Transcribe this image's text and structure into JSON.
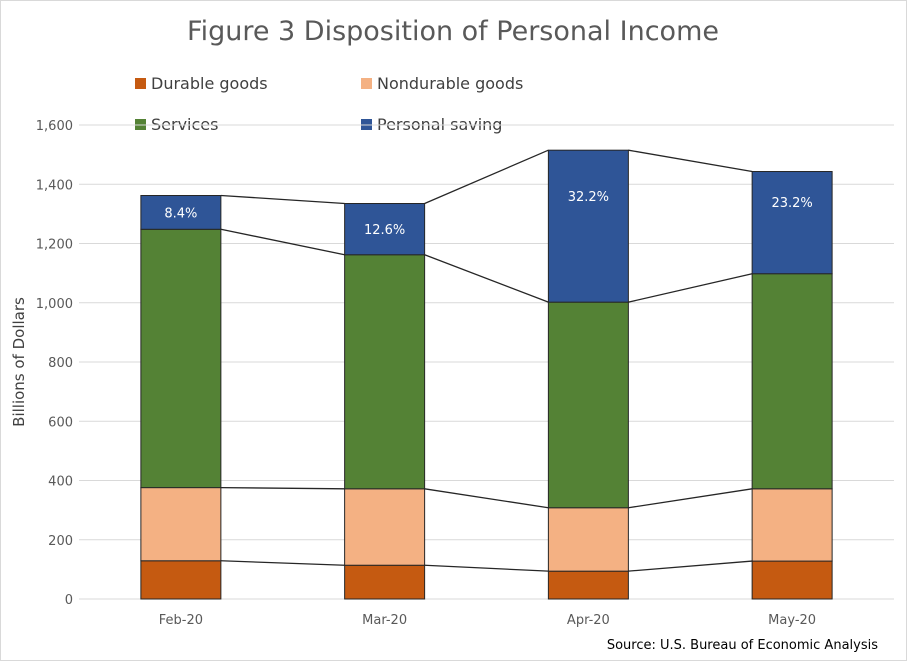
{
  "chart_data": {
    "type": "bar",
    "stacked": true,
    "title": "Figure 3 Disposition of Personal Income",
    "ylabel": "Billions of Dollars",
    "xlabel": "",
    "ylim": [
      0,
      1600
    ],
    "yticks": [
      0,
      200,
      400,
      600,
      800,
      1000,
      1200,
      1400,
      1600
    ],
    "ytick_labels": [
      "0",
      "200",
      "400",
      "600",
      "800",
      "1,000",
      "1,200",
      "1,400",
      "1,600"
    ],
    "grid": true,
    "legend_placement": "top",
    "series_lines": true,
    "categories": [
      "Feb-20",
      "Mar-20",
      "Apr-20",
      "May-20"
    ],
    "series": [
      {
        "name": "Durable goods",
        "color": "#c55a11",
        "values": [
          129,
          114,
          94,
          128
        ]
      },
      {
        "name": "Nondurable goods",
        "color": "#f4b183",
        "values": [
          247,
          258,
          214,
          244
        ]
      },
      {
        "name": "Services",
        "color": "#548235",
        "values": [
          872,
          790,
          694,
          726
        ]
      },
      {
        "name": "Personal saving",
        "color": "#2f5597",
        "values": [
          114,
          173,
          513,
          345
        ],
        "labels": [
          "8.4%",
          "12.6%",
          "32.2%",
          "23.2%"
        ]
      }
    ],
    "source": "Source: U.S. Bureau of Economic Analysis"
  }
}
